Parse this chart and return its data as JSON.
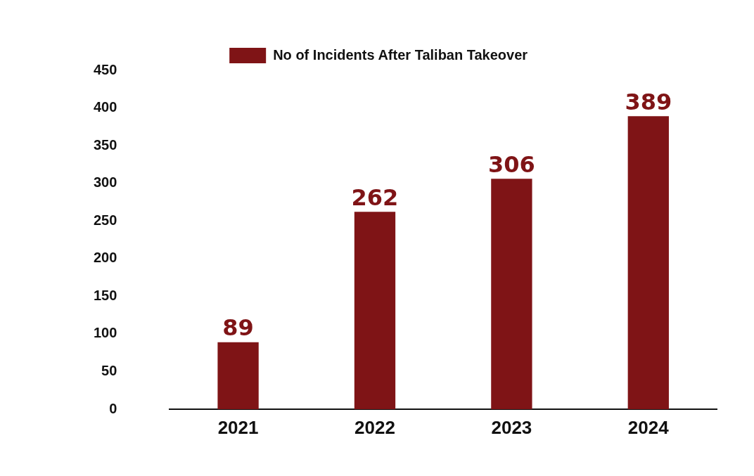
{
  "chart_data": {
    "type": "bar",
    "categories": [
      "2021",
      "2022",
      "2023",
      "2024"
    ],
    "series": [
      {
        "name": "No of Incidents After Taliban Takeover",
        "color": "#7f1416",
        "values": [
          89,
          262,
          306,
          389
        ]
      }
    ],
    "ylim": [
      0,
      450
    ],
    "yticks": [
      0,
      50,
      100,
      150,
      200,
      250,
      300,
      350,
      400,
      450
    ],
    "grid": false,
    "legend": "top",
    "data_labels": true
  }
}
